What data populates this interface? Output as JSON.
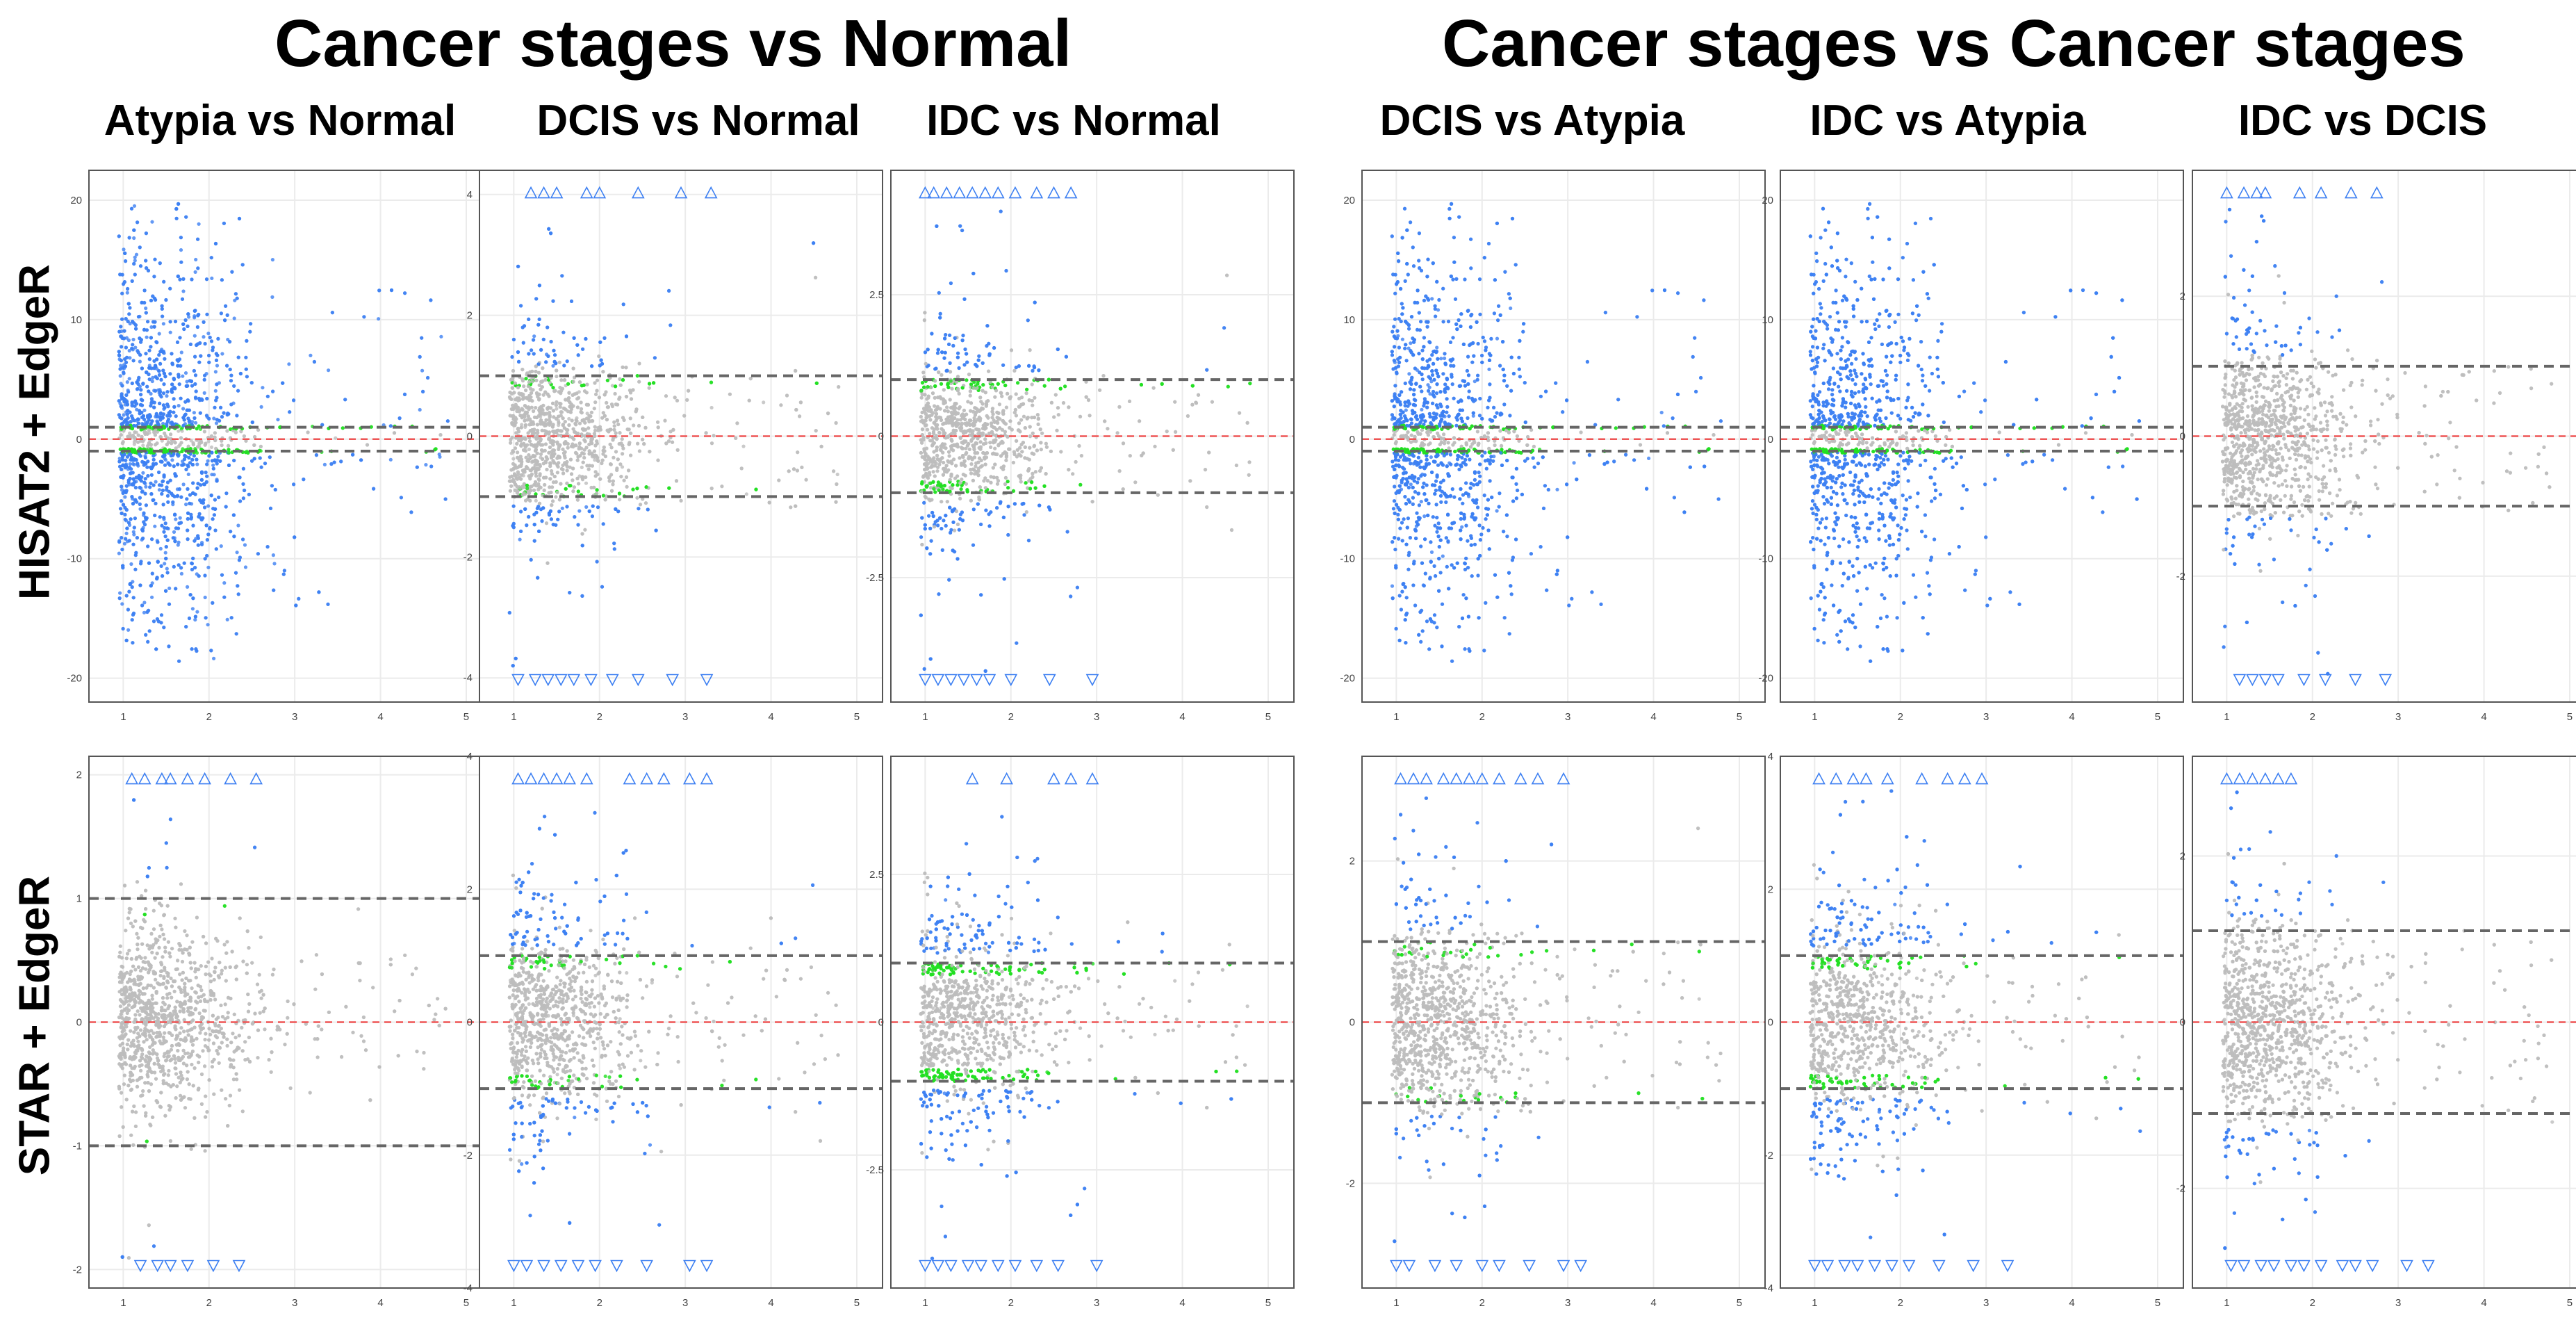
{
  "group_titles": {
    "left": "Cancer stages vs Normal",
    "right": "Cancer stages vs Cancer stages"
  },
  "row_labels": [
    "HISAT2 + EdgeR",
    "STAR + EdgeR"
  ],
  "column_titles": [
    "Atypia vs Normal",
    "DCIS vs Normal",
    "IDC vs Normal",
    "DCIS vs Atypia",
    "IDC vs Atypia",
    "IDC vs DCIS"
  ],
  "colors": {
    "significant_up_down": "#3c7ff2",
    "threshold_only": "#22e022",
    "not_significant": "#bdbdbd",
    "zero_line": "#ee5555",
    "threshold_line": "#666666",
    "clipped_marker": "#3c7ff2"
  },
  "chart_data": [
    {
      "type": "scatter",
      "title": "Atypia vs Normal",
      "row": "HISAT2 + EdgeR",
      "xlim": [
        0.6,
        5.3
      ],
      "ylim": [
        -22,
        22.5
      ],
      "xticks": [
        1,
        2,
        3,
        4,
        5
      ],
      "yticks": [
        -20,
        -10,
        0,
        10,
        20
      ],
      "threshold": 1,
      "spread": 7.5,
      "blue_mode": "bulk",
      "green_frac": 0.12,
      "markers_up": [],
      "markers_down": []
    },
    {
      "type": "scatter",
      "title": "DCIS vs Normal",
      "row": "HISAT2 + EdgeR",
      "xlim": [
        0.6,
        5.3
      ],
      "ylim": [
        -4.4,
        4.4
      ],
      "xticks": [
        1,
        2,
        3,
        4,
        5
      ],
      "yticks": [
        -4,
        -2,
        0,
        2,
        4
      ],
      "threshold": 1,
      "spread": 0.6,
      "blue_mode": "tail",
      "green_frac": 0.05,
      "markers_up": [
        1.2,
        1.35,
        1.5,
        1.85,
        2.0,
        2.45,
        2.95,
        3.3
      ],
      "markers_down": [
        1.05,
        1.25,
        1.4,
        1.55,
        1.7,
        1.9,
        2.15,
        2.45,
        2.85,
        3.25
      ]
    },
    {
      "type": "scatter",
      "title": "IDC vs Normal",
      "row": "HISAT2 + EdgeR",
      "xlim": [
        0.6,
        5.3
      ],
      "ylim": [
        -4.7,
        4.7
      ],
      "xticks": [
        1,
        2,
        3,
        4,
        5
      ],
      "yticks": [
        -2.5,
        0,
        2.5
      ],
      "threshold": 1,
      "spread": 0.65,
      "blue_mode": "tail",
      "green_frac": 0.1,
      "markers_up": [
        1.0,
        1.1,
        1.25,
        1.4,
        1.55,
        1.7,
        1.85,
        2.05,
        2.3,
        2.5,
        2.7
      ],
      "markers_down": [
        1.0,
        1.15,
        1.3,
        1.45,
        1.6,
        1.75,
        2.0,
        2.45,
        2.95
      ]
    },
    {
      "type": "scatter",
      "title": "DCIS vs Atypia",
      "row": "HISAT2 + EdgeR",
      "xlim": [
        0.6,
        5.3
      ],
      "ylim": [
        -22,
        22.5
      ],
      "xticks": [
        1,
        2,
        3,
        4,
        5
      ],
      "yticks": [
        -20,
        -10,
        0,
        10,
        20
      ],
      "threshold": 1,
      "spread": 7.5,
      "blue_mode": "bulk",
      "green_frac": 0.12,
      "markers_up": [],
      "markers_down": []
    },
    {
      "type": "scatter",
      "title": "IDC vs Atypia",
      "row": "HISAT2 + EdgeR",
      "xlim": [
        0.6,
        5.3
      ],
      "ylim": [
        -22,
        22.5
      ],
      "xticks": [
        1,
        2,
        3,
        4,
        5
      ],
      "yticks": [
        -20,
        -10,
        0,
        10,
        20
      ],
      "threshold": 1,
      "spread": 7.5,
      "blue_mode": "bulk",
      "green_frac": 0.12,
      "markers_up": [],
      "markers_down": []
    },
    {
      "type": "scatter",
      "title": "IDC vs DCIS",
      "row": "HISAT2 + EdgeR",
      "xlim": [
        0.6,
        5.3
      ],
      "ylim": [
        -3.8,
        3.8
      ],
      "xticks": [
        1,
        2,
        3,
        4,
        5
      ],
      "yticks": [
        -2,
        0,
        2
      ],
      "threshold": 1,
      "spread": 0.55,
      "blue_mode": "tail",
      "green_frac": 0.0,
      "markers_up": [
        1.0,
        1.2,
        1.35,
        1.45,
        1.85,
        2.1,
        2.45,
        2.75
      ],
      "markers_down": [
        1.15,
        1.3,
        1.45,
        1.6,
        1.9,
        2.15,
        2.5,
        2.85
      ]
    },
    {
      "type": "scatter",
      "title": "Atypia vs Normal",
      "row": "STAR + EdgeR",
      "xlim": [
        0.6,
        5.3
      ],
      "ylim": [
        -2.15,
        2.15
      ],
      "xticks": [
        1,
        2,
        3,
        4,
        5
      ],
      "yticks": [
        -2,
        -1,
        0,
        1,
        2
      ],
      "threshold": 1,
      "spread": 0.3,
      "blue_mode": "tail",
      "green_frac": 0.03,
      "markers_up": [
        1.1,
        1.25,
        1.45,
        1.55,
        1.75,
        1.95,
        2.25,
        2.55
      ],
      "markers_down": [
        1.2,
        1.4,
        1.55,
        1.75,
        2.05,
        2.35
      ]
    },
    {
      "type": "scatter",
      "title": "DCIS vs Normal",
      "row": "STAR + EdgeR",
      "xlim": [
        0.6,
        5.3
      ],
      "ylim": [
        -4.0,
        4.0
      ],
      "xticks": [
        1,
        2,
        3,
        4,
        5
      ],
      "yticks": [
        -4,
        -2,
        0,
        2,
        4
      ],
      "threshold": 1,
      "spread": 0.7,
      "blue_mode": "tail",
      "green_frac": 0.08,
      "markers_up": [
        1.05,
        1.2,
        1.35,
        1.5,
        1.65,
        1.85,
        2.35,
        2.55,
        2.75,
        3.05,
        3.25
      ],
      "markers_down": [
        1.0,
        1.15,
        1.35,
        1.55,
        1.75,
        1.95,
        2.2,
        2.55,
        3.05,
        3.25
      ]
    },
    {
      "type": "scatter",
      "title": "IDC vs Normal",
      "row": "STAR + EdgeR",
      "xlim": [
        0.6,
        5.3
      ],
      "ylim": [
        -4.5,
        4.5
      ],
      "xticks": [
        1,
        2,
        3,
        4,
        5
      ],
      "yticks": [
        -2.5,
        0,
        2.5
      ],
      "threshold": 1,
      "spread": 0.75,
      "blue_mode": "tail",
      "green_frac": 0.18,
      "markers_up": [
        1.55,
        1.95,
        2.5,
        2.7,
        2.95
      ],
      "markers_down": [
        1.0,
        1.15,
        1.3,
        1.5,
        1.65,
        1.85,
        2.05,
        2.3,
        2.55,
        3.0
      ]
    },
    {
      "type": "scatter",
      "title": "DCIS vs Atypia",
      "row": "STAR + EdgeR",
      "xlim": [
        0.6,
        5.3
      ],
      "ylim": [
        -3.3,
        3.3
      ],
      "xticks": [
        1,
        2,
        3,
        4,
        5
      ],
      "yticks": [
        -2,
        0,
        2
      ],
      "threshold": 1,
      "spread": 0.55,
      "blue_mode": "tail",
      "green_frac": 0.05,
      "markers_up": [
        1.05,
        1.2,
        1.35,
        1.55,
        1.7,
        1.85,
        2.0,
        2.2,
        2.45,
        2.65,
        2.95
      ],
      "markers_down": [
        1.0,
        1.15,
        1.45,
        1.7,
        2.0,
        2.2,
        2.55,
        2.95,
        3.15
      ]
    },
    {
      "type": "scatter",
      "title": "IDC vs Atypia",
      "row": "STAR + EdgeR",
      "xlim": [
        0.6,
        5.3
      ],
      "ylim": [
        -4.0,
        4.0
      ],
      "xticks": [
        1,
        2,
        3,
        4,
        5
      ],
      "yticks": [
        -4,
        -2,
        0,
        2,
        4
      ],
      "threshold": 1,
      "spread": 0.75,
      "blue_mode": "tail",
      "green_frac": 0.12,
      "markers_up": [
        1.05,
        1.25,
        1.45,
        1.6,
        1.85,
        2.25,
        2.55,
        2.75,
        2.95
      ],
      "markers_down": [
        1.0,
        1.15,
        1.35,
        1.5,
        1.7,
        1.9,
        2.1,
        2.45,
        2.85,
        3.25
      ]
    },
    {
      "type": "scatter",
      "title": "IDC vs DCIS",
      "row": "STAR + EdgeR",
      "xlim": [
        0.6,
        5.3
      ],
      "ylim": [
        -3.2,
        3.2
      ],
      "xticks": [
        1,
        2,
        3,
        4,
        5
      ],
      "yticks": [
        -2,
        0,
        2
      ],
      "threshold": 1.1,
      "spread": 0.55,
      "blue_mode": "tail",
      "green_frac": 0.0,
      "markers_up": [
        1.0,
        1.15,
        1.3,
        1.45,
        1.6,
        1.75
      ],
      "markers_down": [
        1.05,
        1.2,
        1.4,
        1.55,
        1.75,
        1.9,
        2.1,
        2.35,
        2.5,
        2.7,
        3.1,
        3.35
      ]
    }
  ]
}
